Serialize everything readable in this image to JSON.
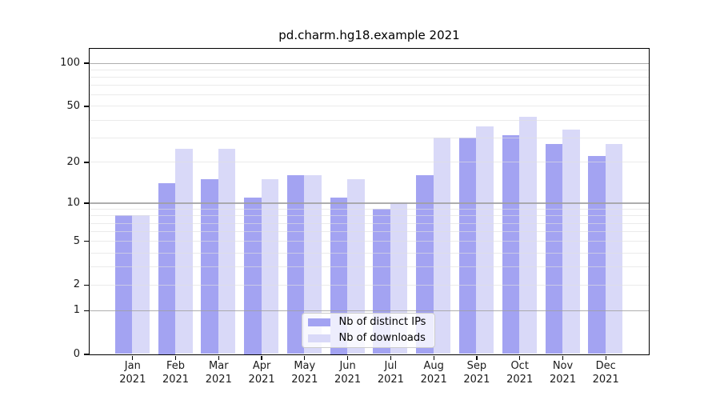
{
  "chart_data": {
    "type": "bar",
    "title": "pd.charm.hg18.example 2021",
    "categories": [
      "Jan",
      "Feb",
      "Mar",
      "Apr",
      "May",
      "Jun",
      "Jul",
      "Aug",
      "Sep",
      "Oct",
      "Nov",
      "Dec"
    ],
    "x_tick_year": "2021",
    "series": [
      {
        "name": "Nb of distinct IPs",
        "color": "#a3a3f2",
        "values": [
          8,
          14,
          15,
          11,
          16,
          11,
          9,
          16,
          30,
          31,
          27,
          22
        ]
      },
      {
        "name": "Nb of downloads",
        "color": "#d9d9f8",
        "values": [
          8,
          25,
          25,
          15,
          16,
          15,
          10,
          30,
          36,
          42,
          34,
          27
        ]
      }
    ],
    "yscale": "log1p",
    "ylim": [
      0,
      126
    ],
    "yticks": [
      0,
      1,
      2,
      5,
      10,
      20,
      50,
      100
    ],
    "major_gridlines": [
      1,
      10,
      100
    ],
    "minor_gridlines": [
      2,
      3,
      4,
      5,
      6,
      7,
      8,
      9,
      20,
      30,
      40,
      50,
      60,
      70,
      80,
      90
    ],
    "grid": true,
    "legend_position": "lower center"
  },
  "colors": {
    "bar_distinct_ips": "#a3a3f2",
    "bar_downloads": "#d9d9f8",
    "spine": "#000000",
    "text": "#1a1a1a",
    "major_grid": "#aaaaaa",
    "minor_grid": "#ebebeb",
    "legend_border": "#cccccc",
    "background": "#ffffff"
  }
}
